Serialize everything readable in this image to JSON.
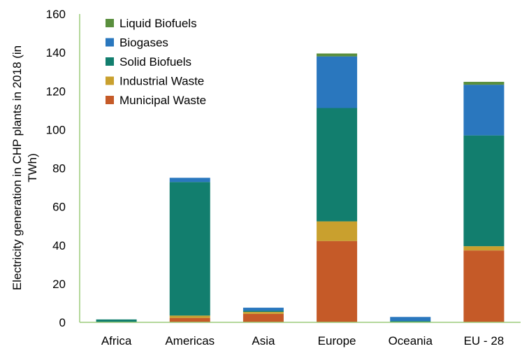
{
  "chart_data": {
    "type": "bar",
    "stacked": true,
    "title": "",
    "xlabel": "",
    "ylabel": "Electricity generation in CHP plants in 2018 (in TWh)",
    "ylabel_lines": [
      "Electricity generation in CHP plants in 2018 (in",
      "TWh)"
    ],
    "ylim": [
      0,
      160
    ],
    "yticks": [
      0,
      20,
      40,
      60,
      80,
      100,
      120,
      140,
      160
    ],
    "grid": false,
    "legend_position": "top-left",
    "categories": [
      "Africa",
      "Americas",
      "Asia",
      "Europe",
      "Oceania",
      "EU - 28"
    ],
    "series": [
      {
        "name": "Municipal Waste",
        "color": "#C55A28",
        "values": [
          0,
          2.3,
          4.4,
          42.2,
          0,
          37.3
        ]
      },
      {
        "name": "Industrial Waste",
        "color": "#C9A02E",
        "values": [
          0,
          1.2,
          1.0,
          10.2,
          0,
          2.2
        ]
      },
      {
        "name": "Solid Biofuels",
        "color": "#127E6E",
        "values": [
          1.5,
          69.3,
          0.6,
          58.8,
          0.7,
          57.5
        ]
      },
      {
        "name": "Biogases",
        "color": "#2A77BE",
        "values": [
          0,
          2.2,
          1.6,
          26.8,
          2.1,
          26.3
        ]
      },
      {
        "name": "Liquid Biofuels",
        "color": "#5A8F3E",
        "values": [
          0,
          0,
          0,
          1.5,
          0,
          1.5
        ]
      }
    ]
  }
}
